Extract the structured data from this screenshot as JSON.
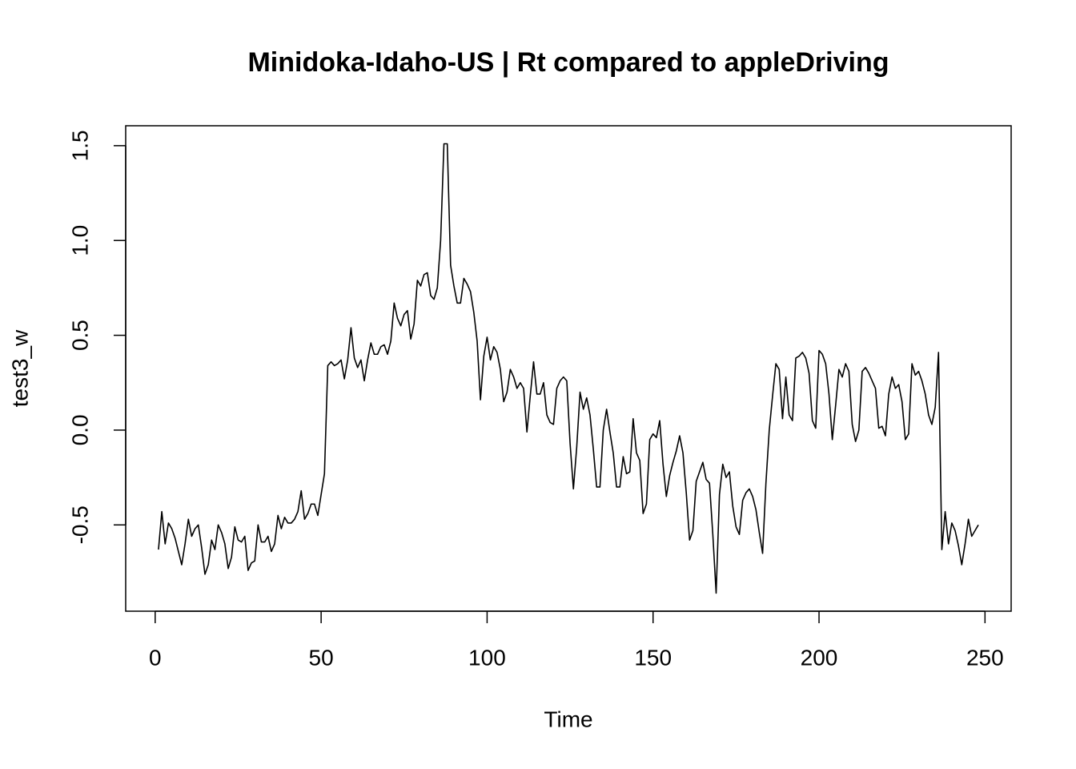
{
  "chart_data": {
    "type": "line",
    "title": "Minidoka-Idaho-US | Rt compared to appleDriving",
    "x_label": "Time",
    "y_label": "test3_w",
    "color": "#000000",
    "xlim": [
      -8.88,
      257.88
    ],
    "ylim": [
      -0.955,
      1.605
    ],
    "xticks": [
      0,
      50,
      100,
      150,
      200,
      250
    ],
    "yticks": [
      -0.5,
      {
        "value": 0,
        "label": "0.0"
      },
      0.5,
      {
        "value": 1,
        "label": "1.0"
      },
      1.5
    ],
    "x": [
      1,
      2,
      3,
      4,
      5,
      6,
      7,
      8,
      9,
      10,
      11,
      12,
      13,
      14,
      15,
      16,
      17,
      18,
      19,
      20,
      21,
      22,
      23,
      24,
      25,
      26,
      27,
      28,
      29,
      30,
      31,
      32,
      33,
      34,
      35,
      36,
      37,
      38,
      39,
      40,
      41,
      42,
      43,
      44,
      45,
      46,
      47,
      48,
      49,
      50,
      51,
      52,
      53,
      54,
      55,
      56,
      57,
      58,
      59,
      60,
      61,
      62,
      63,
      64,
      65,
      66,
      67,
      68,
      69,
      70,
      71,
      72,
      73,
      74,
      75,
      76,
      77,
      78,
      79,
      80,
      81,
      82,
      83,
      84,
      85,
      86,
      87,
      88,
      89,
      90,
      91,
      92,
      93,
      94,
      95,
      96,
      97,
      98,
      99,
      100,
      101,
      102,
      103,
      104,
      105,
      106,
      107,
      108,
      109,
      110,
      111,
      112,
      113,
      114,
      115,
      116,
      117,
      118,
      119,
      120,
      121,
      122,
      123,
      124,
      125,
      126,
      127,
      128,
      129,
      130,
      131,
      132,
      133,
      134,
      135,
      136,
      137,
      138,
      139,
      140,
      141,
      142,
      143,
      144,
      145,
      146,
      147,
      148,
      149,
      150,
      151,
      152,
      153,
      154,
      155,
      156,
      157,
      158,
      159,
      160,
      161,
      162,
      163,
      164,
      165,
      166,
      167,
      168,
      169,
      170,
      171,
      172,
      173,
      174,
      175,
      176,
      177,
      178,
      179,
      180,
      181,
      182,
      183,
      184,
      185,
      186,
      187,
      188,
      189,
      190,
      191,
      192,
      193,
      194,
      195,
      196,
      197,
      198,
      199,
      200,
      201,
      202,
      203,
      204,
      205,
      206,
      207,
      208,
      209,
      210,
      211,
      212,
      213,
      214,
      215,
      216,
      217,
      218,
      219,
      220,
      221,
      222,
      223,
      224,
      225,
      226,
      227,
      228,
      229,
      230,
      231,
      232,
      233,
      234,
      235,
      236,
      237,
      238,
      239,
      240,
      241,
      242,
      243,
      244,
      245,
      246,
      247,
      248
    ],
    "values": [
      -0.63,
      -0.43,
      -0.6,
      -0.49,
      -0.52,
      -0.57,
      -0.64,
      -0.71,
      -0.6,
      -0.47,
      -0.56,
      -0.52,
      -0.5,
      -0.62,
      -0.76,
      -0.71,
      -0.58,
      -0.63,
      -0.5,
      -0.54,
      -0.6,
      -0.73,
      -0.67,
      -0.51,
      -0.58,
      -0.59,
      -0.56,
      -0.74,
      -0.7,
      -0.69,
      -0.5,
      -0.59,
      -0.59,
      -0.56,
      -0.64,
      -0.6,
      -0.45,
      -0.52,
      -0.46,
      -0.49,
      -0.49,
      -0.47,
      -0.43,
      -0.32,
      -0.47,
      -0.44,
      -0.39,
      -0.39,
      -0.45,
      -0.34,
      -0.23,
      0.34,
      0.36,
      0.34,
      0.35,
      0.37,
      0.27,
      0.37,
      0.54,
      0.38,
      0.33,
      0.37,
      0.26,
      0.37,
      0.46,
      0.4,
      0.4,
      0.44,
      0.45,
      0.4,
      0.47,
      0.67,
      0.59,
      0.55,
      0.61,
      0.63,
      0.48,
      0.56,
      0.79,
      0.76,
      0.82,
      0.83,
      0.71,
      0.69,
      0.75,
      1.0,
      1.51,
      1.51,
      0.87,
      0.76,
      0.67,
      0.67,
      0.8,
      0.77,
      0.73,
      0.62,
      0.47,
      0.16,
      0.39,
      0.49,
      0.37,
      0.44,
      0.41,
      0.32,
      0.15,
      0.2,
      0.32,
      0.28,
      0.22,
      0.25,
      0.22,
      -0.01,
      0.18,
      0.36,
      0.19,
      0.19,
      0.25,
      0.08,
      0.04,
      0.03,
      0.22,
      0.26,
      0.28,
      0.26,
      -0.07,
      -0.31,
      -0.09,
      0.2,
      0.11,
      0.17,
      0.08,
      -0.1,
      -0.3,
      -0.3,
      0.0,
      0.11,
      -0.01,
      -0.12,
      -0.3,
      -0.3,
      -0.14,
      -0.23,
      -0.22,
      0.06,
      -0.12,
      -0.16,
      -0.44,
      -0.39,
      -0.05,
      -0.02,
      -0.04,
      0.05,
      -0.18,
      -0.35,
      -0.24,
      -0.17,
      -0.11,
      -0.03,
      -0.12,
      -0.33,
      -0.58,
      -0.53,
      -0.27,
      -0.22,
      -0.17,
      -0.26,
      -0.28,
      -0.55,
      -0.86,
      -0.34,
      -0.18,
      -0.25,
      -0.22,
      -0.4,
      -0.51,
      -0.55,
      -0.37,
      -0.33,
      -0.31,
      -0.35,
      -0.42,
      -0.54,
      -0.65,
      -0.28,
      0.0,
      0.18,
      0.35,
      0.32,
      0.06,
      0.28,
      0.08,
      0.05,
      0.38,
      0.39,
      0.41,
      0.38,
      0.3,
      0.05,
      0.01,
      0.42,
      0.4,
      0.35,
      0.19,
      -0.05,
      0.13,
      0.32,
      0.28,
      0.35,
      0.31,
      0.03,
      -0.06,
      0.0,
      0.31,
      0.33,
      0.3,
      0.26,
      0.22,
      0.01,
      0.02,
      -0.03,
      0.19,
      0.28,
      0.22,
      0.24,
      0.15,
      -0.05,
      -0.02,
      0.35,
      0.29,
      0.31,
      0.26,
      0.19,
      0.08,
      0.03,
      0.12,
      0.41,
      -0.63,
      -0.43,
      -0.6,
      -0.49,
      -0.53,
      -0.61,
      -0.71,
      -0.6,
      -0.47,
      -0.56,
      -0.53,
      -0.5
    ]
  }
}
